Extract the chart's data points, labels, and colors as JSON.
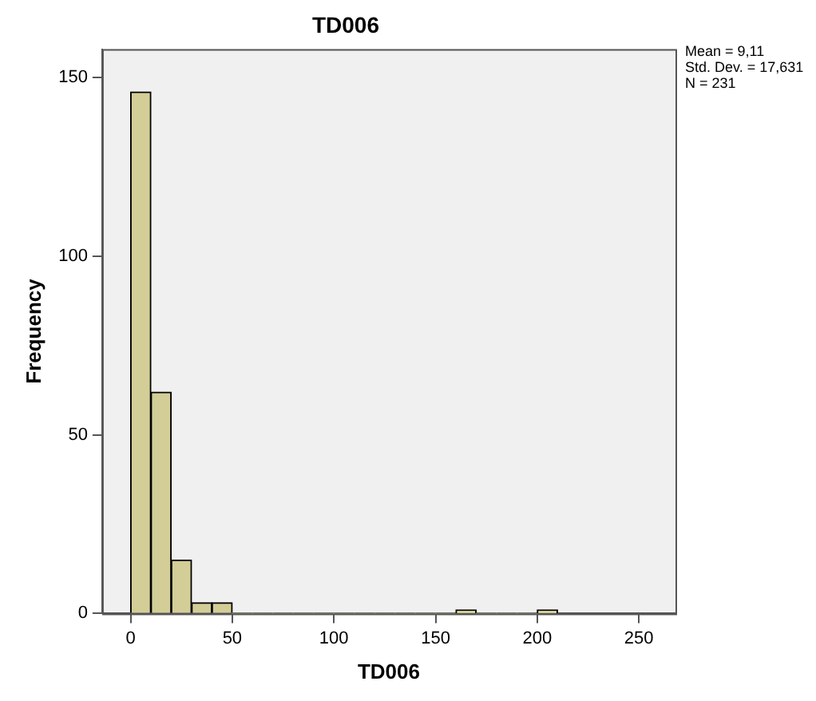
{
  "chart_data": {
    "type": "histogram",
    "title": "TD006",
    "xlabel": "TD006",
    "ylabel": "Frequency",
    "annotations": [
      "Mean = 9,11",
      "Std. Dev. = 17,631",
      "N = 231"
    ],
    "bins": [
      0,
      10,
      20,
      30,
      40,
      50,
      60,
      70,
      80,
      90,
      100,
      110,
      120,
      130,
      140,
      150,
      160,
      170,
      180,
      190,
      200,
      210
    ],
    "values": [
      146,
      62,
      15,
      3,
      3,
      0,
      0,
      0,
      0,
      0,
      0,
      0,
      0,
      0,
      0,
      0,
      1,
      0,
      0,
      0,
      1
    ],
    "color": "#d3ce97",
    "xlim": [
      -14,
      268
    ],
    "xticks": [
      0,
      50,
      100,
      150,
      200,
      250
    ],
    "ylim": [
      0,
      158
    ],
    "yticks": [
      0,
      50,
      100,
      150
    ],
    "grid": false,
    "legend": false
  }
}
